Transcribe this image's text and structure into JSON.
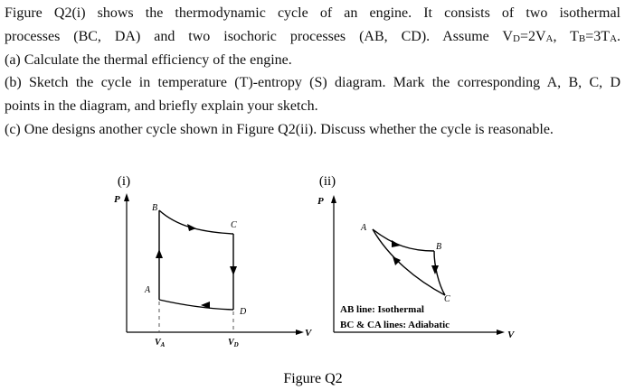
{
  "question": {
    "line1": "Figure Q2(i) shows the thermodynamic cycle of an engine. It consists of two isothermal",
    "line2": [
      "processes (BC, DA) and two isochoric processes (AB, CD). Assume V",
      "D",
      "=2V",
      "A",
      ", T",
      "B",
      "=3T",
      "A",
      "."
    ],
    "part_a": "(a) Calculate the thermal efficiency of the engine.",
    "part_b_1": "(b) Sketch the cycle in temperature (T)-entropy (S) diagram. Mark the corresponding A, B, C, D",
    "part_b_2": "points in the diagram, and briefly explain your sketch.",
    "part_c": "(c) One designs another cycle shown in Figure Q2(ii). Discuss whether the cycle is reasonable."
  },
  "figure_i": {
    "label": "(i)",
    "y_axis": "P",
    "x_axis": "V",
    "points": [
      "A",
      "B",
      "C",
      "D"
    ],
    "x_ticks": [
      {
        "main": "V",
        "sub": "A"
      },
      {
        "main": "V",
        "sub": "D"
      }
    ]
  },
  "figure_ii": {
    "label": "(ii)",
    "y_axis": "P",
    "x_axis": "V",
    "points": [
      "A",
      "B",
      "C"
    ],
    "legend": [
      "AB line: Isothermal",
      "BC & CA lines: Adiabatic"
    ]
  },
  "caption": "Figure Q2"
}
